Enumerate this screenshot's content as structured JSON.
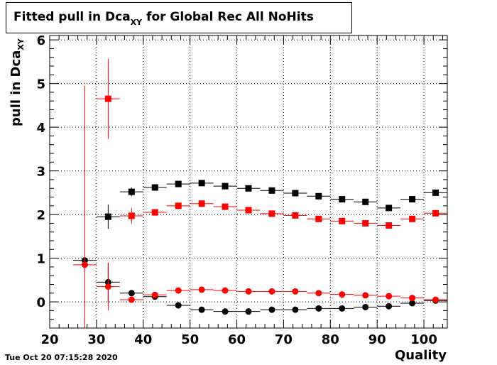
{
  "chart_data": {
    "type": "scatter",
    "title": "Fitted pull in Dca",
    "title_subscript": "XY",
    "title_suffix": " for Global Rec All NoHits",
    "xlabel": "Quality",
    "ylabel": "pull in Dca",
    "ylabel_subscript": "XY",
    "xlim": [
      20,
      105
    ],
    "ylim": [
      -0.6,
      6.1
    ],
    "x_ticks": [
      20,
      30,
      40,
      50,
      60,
      70,
      80,
      90,
      100
    ],
    "y_ticks": [
      0,
      1,
      2,
      3,
      4,
      5,
      6
    ],
    "grid": true,
    "series": [
      {
        "marker": "square",
        "color": "#000000",
        "points": [
          {
            "x": 32.5,
            "y": 1.95,
            "xerr": 2.5,
            "yerr": 0.28
          },
          {
            "x": 37.5,
            "y": 2.52,
            "xerr": 2.5,
            "yerr": 0.1
          },
          {
            "x": 42.5,
            "y": 2.62,
            "xerr": 2.5,
            "yerr": 0.05
          },
          {
            "x": 47.5,
            "y": 2.7,
            "xerr": 2.5,
            "yerr": 0.04
          },
          {
            "x": 52.5,
            "y": 2.72,
            "xerr": 2.5,
            "yerr": 0.04
          },
          {
            "x": 57.5,
            "y": 2.65,
            "xerr": 2.5,
            "yerr": 0.04
          },
          {
            "x": 62.5,
            "y": 2.6,
            "xerr": 2.5,
            "yerr": 0.04
          },
          {
            "x": 67.5,
            "y": 2.55,
            "xerr": 2.5,
            "yerr": 0.04
          },
          {
            "x": 72.5,
            "y": 2.49,
            "xerr": 2.5,
            "yerr": 0.04
          },
          {
            "x": 77.5,
            "y": 2.42,
            "xerr": 2.5,
            "yerr": 0.04
          },
          {
            "x": 82.5,
            "y": 2.35,
            "xerr": 2.5,
            "yerr": 0.04
          },
          {
            "x": 87.5,
            "y": 2.29,
            "xerr": 2.5,
            "yerr": 0.04
          },
          {
            "x": 92.5,
            "y": 2.15,
            "xerr": 2.5,
            "yerr": 0.05
          },
          {
            "x": 97.5,
            "y": 2.35,
            "xerr": 2.5,
            "yerr": 0.04
          },
          {
            "x": 102.5,
            "y": 2.5,
            "xerr": 2.5,
            "yerr": 0.04
          }
        ]
      },
      {
        "marker": "square",
        "color": "#ff0000",
        "points": [
          {
            "x": 32.5,
            "y": 4.65,
            "xerr": 2.5,
            "yerr": 0.92
          },
          {
            "x": 37.5,
            "y": 1.97,
            "xerr": 2.5,
            "yerr": 0.18
          },
          {
            "x": 42.5,
            "y": 2.05,
            "xerr": 2.5,
            "yerr": 0.05
          },
          {
            "x": 47.5,
            "y": 2.2,
            "xerr": 2.5,
            "yerr": 0.04
          },
          {
            "x": 52.5,
            "y": 2.25,
            "xerr": 2.5,
            "yerr": 0.04
          },
          {
            "x": 57.5,
            "y": 2.18,
            "xerr": 2.5,
            "yerr": 0.04
          },
          {
            "x": 62.5,
            "y": 2.1,
            "xerr": 2.5,
            "yerr": 0.04
          },
          {
            "x": 67.5,
            "y": 2.02,
            "xerr": 2.5,
            "yerr": 0.04
          },
          {
            "x": 72.5,
            "y": 1.98,
            "xerr": 2.5,
            "yerr": 0.04
          },
          {
            "x": 77.5,
            "y": 1.9,
            "xerr": 2.5,
            "yerr": 0.04
          },
          {
            "x": 82.5,
            "y": 1.85,
            "xerr": 2.5,
            "yerr": 0.04
          },
          {
            "x": 87.5,
            "y": 1.8,
            "xerr": 2.5,
            "yerr": 0.04
          },
          {
            "x": 92.5,
            "y": 1.75,
            "xerr": 2.5,
            "yerr": 0.04
          },
          {
            "x": 97.5,
            "y": 1.9,
            "xerr": 2.5,
            "yerr": 0.04
          },
          {
            "x": 102.5,
            "y": 2.03,
            "xerr": 2.5,
            "yerr": 0.04
          }
        ]
      },
      {
        "marker": "circle",
        "color": "#000000",
        "points": [
          {
            "x": 27.5,
            "y": 0.95,
            "xerr": 2.5,
            "yerr": 0.05
          },
          {
            "x": 32.5,
            "y": 0.45,
            "xerr": 2.5,
            "yerr": 0.45
          },
          {
            "x": 37.5,
            "y": 0.2,
            "xerr": 2.5,
            "yerr": 0.04
          },
          {
            "x": 42.5,
            "y": 0.12,
            "xerr": 2.5,
            "yerr": 0.03
          },
          {
            "x": 47.5,
            "y": -0.08,
            "xerr": 2.5,
            "yerr": 0.03
          },
          {
            "x": 52.5,
            "y": -0.18,
            "xerr": 2.5,
            "yerr": 0.03
          },
          {
            "x": 57.5,
            "y": -0.22,
            "xerr": 2.5,
            "yerr": 0.03
          },
          {
            "x": 62.5,
            "y": -0.22,
            "xerr": 2.5,
            "yerr": 0.03
          },
          {
            "x": 67.5,
            "y": -0.18,
            "xerr": 2.5,
            "yerr": 0.03
          },
          {
            "x": 72.5,
            "y": -0.18,
            "xerr": 2.5,
            "yerr": 0.03
          },
          {
            "x": 77.5,
            "y": -0.15,
            "xerr": 2.5,
            "yerr": 0.03
          },
          {
            "x": 82.5,
            "y": -0.15,
            "xerr": 2.5,
            "yerr": 0.03
          },
          {
            "x": 87.5,
            "y": -0.12,
            "xerr": 2.5,
            "yerr": 0.03
          },
          {
            "x": 92.5,
            "y": -0.1,
            "xerr": 2.5,
            "yerr": 0.03
          },
          {
            "x": 97.5,
            "y": -0.03,
            "xerr": 2.5,
            "yerr": 0.03
          },
          {
            "x": 102.5,
            "y": 0.03,
            "xerr": 2.5,
            "yerr": 0.03
          }
        ]
      },
      {
        "marker": "circle",
        "color": "#ff0000",
        "points": [
          {
            "x": 27.5,
            "y": 0.85,
            "xerr": 2.5,
            "yerr": 4.1
          },
          {
            "x": 32.5,
            "y": 0.35,
            "xerr": 2.5,
            "yerr": 0.55
          },
          {
            "x": 37.5,
            "y": 0.05,
            "xerr": 2.5,
            "yerr": 0.06
          },
          {
            "x": 42.5,
            "y": 0.16,
            "xerr": 2.5,
            "yerr": 0.03
          },
          {
            "x": 47.5,
            "y": 0.26,
            "xerr": 2.5,
            "yerr": 0.03
          },
          {
            "x": 52.5,
            "y": 0.28,
            "xerr": 2.5,
            "yerr": 0.03
          },
          {
            "x": 57.5,
            "y": 0.26,
            "xerr": 2.5,
            "yerr": 0.03
          },
          {
            "x": 62.5,
            "y": 0.24,
            "xerr": 2.5,
            "yerr": 0.03
          },
          {
            "x": 67.5,
            "y": 0.24,
            "xerr": 2.5,
            "yerr": 0.03
          },
          {
            "x": 72.5,
            "y": 0.24,
            "xerr": 2.5,
            "yerr": 0.03
          },
          {
            "x": 77.5,
            "y": 0.2,
            "xerr": 2.5,
            "yerr": 0.03
          },
          {
            "x": 82.5,
            "y": 0.17,
            "xerr": 2.5,
            "yerr": 0.03
          },
          {
            "x": 87.5,
            "y": 0.15,
            "xerr": 2.5,
            "yerr": 0.03
          },
          {
            "x": 92.5,
            "y": 0.13,
            "xerr": 2.5,
            "yerr": 0.03
          },
          {
            "x": 97.5,
            "y": 0.09,
            "xerr": 2.5,
            "yerr": 0.03
          },
          {
            "x": 102.5,
            "y": 0.05,
            "xerr": 2.5,
            "yerr": 0.03
          }
        ]
      }
    ]
  },
  "footer": {
    "timestamp": "Tue Oct 20 07:15:28 2020"
  }
}
